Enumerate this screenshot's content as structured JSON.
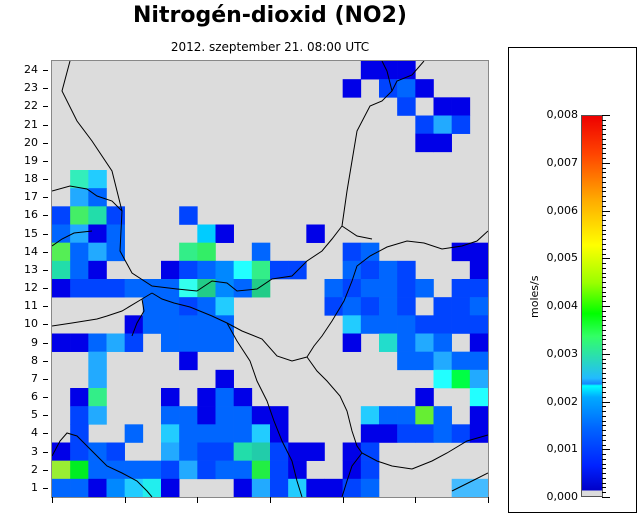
{
  "header": {
    "title": "Nitrogén-dioxid (NO2)",
    "subtitle": "2012. szeptember 21. 08:00 UTC"
  },
  "map": {
    "y_labels": [
      "24",
      "23",
      "22",
      "21",
      "20",
      "19",
      "18",
      "17",
      "16",
      "15",
      "14",
      "13",
      "12",
      "11",
      "10",
      "9",
      "8",
      "7",
      "6",
      "5",
      "4",
      "3",
      "2",
      "1"
    ],
    "grid_rows": 24,
    "grid_cols": 24,
    "cells": [
      {
        "row": 24,
        "col": 18,
        "color": "#0000e8"
      },
      {
        "row": 24,
        "col": 19,
        "color": "#0000e8"
      },
      {
        "row": 24,
        "col": 20,
        "color": "#0000e8"
      },
      {
        "row": 23,
        "col": 17,
        "color": "#0000e8"
      },
      {
        "row": 23,
        "col": 19,
        "color": "#0044ff"
      },
      {
        "row": 23,
        "col": 20,
        "color": "#0066ff"
      },
      {
        "row": 23,
        "col": 21,
        "color": "#0000e8"
      },
      {
        "row": 22,
        "col": 20,
        "color": "#0044ff"
      },
      {
        "row": 22,
        "col": 22,
        "color": "#0000e8"
      },
      {
        "row": 22,
        "col": 23,
        "color": "#0000e8"
      },
      {
        "row": 21,
        "col": 21,
        "color": "#0044ff"
      },
      {
        "row": 21,
        "col": 22,
        "color": "#22aaff"
      },
      {
        "row": 21,
        "col": 23,
        "color": "#0044ff"
      },
      {
        "row": 20,
        "col": 21,
        "color": "#0000e8"
      },
      {
        "row": 20,
        "col": 22,
        "color": "#0000e8"
      },
      {
        "row": 18,
        "col": 2,
        "color": "#33eebb"
      },
      {
        "row": 18,
        "col": 3,
        "color": "#22ccff"
      },
      {
        "row": 17,
        "col": 2,
        "color": "#22aaff"
      },
      {
        "row": 17,
        "col": 3,
        "color": "#0066ff"
      },
      {
        "row": 16,
        "col": 1,
        "color": "#0044ff"
      },
      {
        "row": 16,
        "col": 2,
        "color": "#44ee66"
      },
      {
        "row": 16,
        "col": 3,
        "color": "#22ddaa"
      },
      {
        "row": 16,
        "col": 4,
        "color": "#0044ff"
      },
      {
        "row": 16,
        "col": 8,
        "color": "#0044ff"
      },
      {
        "row": 15,
        "col": 1,
        "color": "#0066ff"
      },
      {
        "row": 15,
        "col": 2,
        "color": "#22aaff"
      },
      {
        "row": 15,
        "col": 3,
        "color": "#0000e8"
      },
      {
        "row": 15,
        "col": 4,
        "color": "#0066ff"
      },
      {
        "row": 15,
        "col": 9,
        "color": "#00ccff"
      },
      {
        "row": 15,
        "col": 10,
        "color": "#0000e8"
      },
      {
        "row": 15,
        "col": 15,
        "color": "#0000e8"
      },
      {
        "row": 14,
        "col": 1,
        "color": "#55ee55"
      },
      {
        "row": 14,
        "col": 2,
        "color": "#0066ff"
      },
      {
        "row": 14,
        "col": 3,
        "color": "#22aaff"
      },
      {
        "row": 14,
        "col": 4,
        "color": "#0066ff"
      },
      {
        "row": 14,
        "col": 8,
        "color": "#33ee88"
      },
      {
        "row": 14,
        "col": 9,
        "color": "#33ee66"
      },
      {
        "row": 14,
        "col": 12,
        "color": "#0066ff"
      },
      {
        "row": 14,
        "col": 17,
        "color": "#0044ff"
      },
      {
        "row": 14,
        "col": 18,
        "color": "#0066ff"
      },
      {
        "row": 14,
        "col": 23,
        "color": "#0000e8"
      },
      {
        "row": 14,
        "col": 24,
        "color": "#0000e8"
      },
      {
        "row": 13,
        "col": 1,
        "color": "#22ddaa"
      },
      {
        "row": 13,
        "col": 2,
        "color": "#0066ff"
      },
      {
        "row": 13,
        "col": 3,
        "color": "#0000e8"
      },
      {
        "row": 13,
        "col": 7,
        "color": "#0000e8"
      },
      {
        "row": 13,
        "col": 8,
        "color": "#0044ff"
      },
      {
        "row": 13,
        "col": 9,
        "color": "#0066ff"
      },
      {
        "row": 13,
        "col": 10,
        "color": "#0088ff"
      },
      {
        "row": 13,
        "col": 11,
        "color": "#22ffff"
      },
      {
        "row": 13,
        "col": 12,
        "color": "#33ee88"
      },
      {
        "row": 13,
        "col": 13,
        "color": "#0044ff"
      },
      {
        "row": 13,
        "col": 14,
        "color": "#0044ff"
      },
      {
        "row": 13,
        "col": 17,
        "color": "#0066ff"
      },
      {
        "row": 13,
        "col": 18,
        "color": "#0044ff"
      },
      {
        "row": 13,
        "col": 19,
        "color": "#0066ff"
      },
      {
        "row": 13,
        "col": 20,
        "color": "#0044ff"
      },
      {
        "row": 13,
        "col": 24,
        "color": "#0000e8"
      },
      {
        "row": 12,
        "col": 1,
        "color": "#0000e8"
      },
      {
        "row": 12,
        "col": 2,
        "color": "#0044ff"
      },
      {
        "row": 12,
        "col": 3,
        "color": "#0044ff"
      },
      {
        "row": 12,
        "col": 4,
        "color": "#0044ff"
      },
      {
        "row": 12,
        "col": 5,
        "color": "#0066ff"
      },
      {
        "row": 12,
        "col": 6,
        "color": "#0066ff"
      },
      {
        "row": 12,
        "col": 7,
        "color": "#0066ff"
      },
      {
        "row": 12,
        "col": 8,
        "color": "#33ffee"
      },
      {
        "row": 12,
        "col": 9,
        "color": "#22cc88"
      },
      {
        "row": 12,
        "col": 10,
        "color": "#0088ff"
      },
      {
        "row": 12,
        "col": 11,
        "color": "#0066ff"
      },
      {
        "row": 12,
        "col": 12,
        "color": "#22cc88"
      },
      {
        "row": 12,
        "col": 16,
        "color": "#0066ff"
      },
      {
        "row": 12,
        "col": 17,
        "color": "#0044ff"
      },
      {
        "row": 12,
        "col": 18,
        "color": "#0066ff"
      },
      {
        "row": 12,
        "col": 19,
        "color": "#0066ff"
      },
      {
        "row": 12,
        "col": 20,
        "color": "#0044ff"
      },
      {
        "row": 12,
        "col": 21,
        "color": "#0066ff"
      },
      {
        "row": 12,
        "col": 23,
        "color": "#0044ff"
      },
      {
        "row": 12,
        "col": 24,
        "color": "#0044ff"
      },
      {
        "row": 11,
        "col": 6,
        "color": "#0066ff"
      },
      {
        "row": 11,
        "col": 7,
        "color": "#0066ff"
      },
      {
        "row": 11,
        "col": 8,
        "color": "#0044ff"
      },
      {
        "row": 11,
        "col": 9,
        "color": "#0066ff"
      },
      {
        "row": 11,
        "col": 10,
        "color": "#22ccff"
      },
      {
        "row": 11,
        "col": 16,
        "color": "#0044ff"
      },
      {
        "row": 11,
        "col": 17,
        "color": "#0066ff"
      },
      {
        "row": 11,
        "col": 18,
        "color": "#0044ff"
      },
      {
        "row": 11,
        "col": 19,
        "color": "#0066ff"
      },
      {
        "row": 11,
        "col": 20,
        "color": "#0044ff"
      },
      {
        "row": 11,
        "col": 22,
        "color": "#0044ff"
      },
      {
        "row": 11,
        "col": 23,
        "color": "#0044ff"
      },
      {
        "row": 11,
        "col": 24,
        "color": "#0066ff"
      },
      {
        "row": 10,
        "col": 5,
        "color": "#0000e8"
      },
      {
        "row": 10,
        "col": 6,
        "color": "#0066ff"
      },
      {
        "row": 10,
        "col": 7,
        "color": "#0066ff"
      },
      {
        "row": 10,
        "col": 8,
        "color": "#0066ff"
      },
      {
        "row": 10,
        "col": 9,
        "color": "#0066ff"
      },
      {
        "row": 10,
        "col": 10,
        "color": "#0066ff"
      },
      {
        "row": 10,
        "col": 17,
        "color": "#22ccff"
      },
      {
        "row": 10,
        "col": 18,
        "color": "#0066ff"
      },
      {
        "row": 10,
        "col": 19,
        "color": "#0066ff"
      },
      {
        "row": 10,
        "col": 20,
        "color": "#0066ff"
      },
      {
        "row": 10,
        "col": 21,
        "color": "#0044ff"
      },
      {
        "row": 10,
        "col": 22,
        "color": "#0044ff"
      },
      {
        "row": 10,
        "col": 23,
        "color": "#0044ff"
      },
      {
        "row": 10,
        "col": 24,
        "color": "#0044ff"
      },
      {
        "row": 9,
        "col": 1,
        "color": "#0000e8"
      },
      {
        "row": 9,
        "col": 2,
        "color": "#0000e8"
      },
      {
        "row": 9,
        "col": 3,
        "color": "#0066ff"
      },
      {
        "row": 9,
        "col": 4,
        "color": "#22aaff"
      },
      {
        "row": 9,
        "col": 5,
        "color": "#0044ff"
      },
      {
        "row": 9,
        "col": 7,
        "color": "#0066ff"
      },
      {
        "row": 9,
        "col": 8,
        "color": "#0066ff"
      },
      {
        "row": 9,
        "col": 9,
        "color": "#0066ff"
      },
      {
        "row": 9,
        "col": 10,
        "color": "#0066ff"
      },
      {
        "row": 9,
        "col": 17,
        "color": "#0000e8"
      },
      {
        "row": 9,
        "col": 19,
        "color": "#22ddcc"
      },
      {
        "row": 9,
        "col": 20,
        "color": "#0066ff"
      },
      {
        "row": 9,
        "col": 21,
        "color": "#22aaff"
      },
      {
        "row": 9,
        "col": 22,
        "color": "#0066ff"
      },
      {
        "row": 9,
        "col": 24,
        "color": "#0000e8"
      },
      {
        "row": 8,
        "col": 3,
        "color": "#22aaff"
      },
      {
        "row": 8,
        "col": 8,
        "color": "#0000e8"
      },
      {
        "row": 8,
        "col": 20,
        "color": "#0066ff"
      },
      {
        "row": 8,
        "col": 21,
        "color": "#0066ff"
      },
      {
        "row": 8,
        "col": 22,
        "color": "#22aaff"
      },
      {
        "row": 8,
        "col": 23,
        "color": "#0066ff"
      },
      {
        "row": 8,
        "col": 24,
        "color": "#0066ff"
      },
      {
        "row": 7,
        "col": 3,
        "color": "#22aaff"
      },
      {
        "row": 7,
        "col": 10,
        "color": "#0000e8"
      },
      {
        "row": 7,
        "col": 22,
        "color": "#22ffff"
      },
      {
        "row": 7,
        "col": 23,
        "color": "#00ff44"
      },
      {
        "row": 7,
        "col": 24,
        "color": "#22aaff"
      },
      {
        "row": 6,
        "col": 2,
        "color": "#0000e8"
      },
      {
        "row": 6,
        "col": 3,
        "color": "#33ee88"
      },
      {
        "row": 6,
        "col": 7,
        "color": "#0000e8"
      },
      {
        "row": 6,
        "col": 9,
        "color": "#0000e8"
      },
      {
        "row": 6,
        "col": 10,
        "color": "#0066ff"
      },
      {
        "row": 6,
        "col": 11,
        "color": "#0000e8"
      },
      {
        "row": 6,
        "col": 21,
        "color": "#0000e8"
      },
      {
        "row": 6,
        "col": 24,
        "color": "#22ffff"
      },
      {
        "row": 5,
        "col": 2,
        "color": "#0044ff"
      },
      {
        "row": 5,
        "col": 3,
        "color": "#22aaff"
      },
      {
        "row": 5,
        "col": 7,
        "color": "#0066ff"
      },
      {
        "row": 5,
        "col": 8,
        "color": "#0066ff"
      },
      {
        "row": 5,
        "col": 9,
        "color": "#0000e8"
      },
      {
        "row": 5,
        "col": 10,
        "color": "#0066ff"
      },
      {
        "row": 5,
        "col": 11,
        "color": "#0066ff"
      },
      {
        "row": 5,
        "col": 12,
        "color": "#0000e8"
      },
      {
        "row": 5,
        "col": 13,
        "color": "#0000e8"
      },
      {
        "row": 5,
        "col": 18,
        "color": "#22ccff"
      },
      {
        "row": 5,
        "col": 19,
        "color": "#0066ff"
      },
      {
        "row": 5,
        "col": 20,
        "color": "#0066ff"
      },
      {
        "row": 5,
        "col": 21,
        "color": "#66ee33"
      },
      {
        "row": 5,
        "col": 22,
        "color": "#0066ff"
      },
      {
        "row": 5,
        "col": 24,
        "color": "#0000e8"
      },
      {
        "row": 4,
        "col": 2,
        "color": "#0044ff"
      },
      {
        "row": 4,
        "col": 5,
        "color": "#0066ff"
      },
      {
        "row": 4,
        "col": 7,
        "color": "#22ccff"
      },
      {
        "row": 4,
        "col": 8,
        "color": "#0066ff"
      },
      {
        "row": 4,
        "col": 9,
        "color": "#0066ff"
      },
      {
        "row": 4,
        "col": 10,
        "color": "#0066ff"
      },
      {
        "row": 4,
        "col": 11,
        "color": "#0066ff"
      },
      {
        "row": 4,
        "col": 12,
        "color": "#22ccff"
      },
      {
        "row": 4,
        "col": 13,
        "color": "#0000e8"
      },
      {
        "row": 4,
        "col": 18,
        "color": "#0000e8"
      },
      {
        "row": 4,
        "col": 19,
        "color": "#0000e8"
      },
      {
        "row": 4,
        "col": 20,
        "color": "#0044ff"
      },
      {
        "row": 4,
        "col": 21,
        "color": "#0044ff"
      },
      {
        "row": 4,
        "col": 22,
        "color": "#0066ff"
      },
      {
        "row": 4,
        "col": 23,
        "color": "#0044ff"
      },
      {
        "row": 4,
        "col": 24,
        "color": "#0000e8"
      },
      {
        "row": 3,
        "col": 1,
        "color": "#0000e8"
      },
      {
        "row": 3,
        "col": 2,
        "color": "#0044ff"
      },
      {
        "row": 3,
        "col": 3,
        "color": "#0066ff"
      },
      {
        "row": 3,
        "col": 4,
        "color": "#0044ff"
      },
      {
        "row": 3,
        "col": 7,
        "color": "#22aaff"
      },
      {
        "row": 3,
        "col": 8,
        "color": "#0066ff"
      },
      {
        "row": 3,
        "col": 9,
        "color": "#0044ff"
      },
      {
        "row": 3,
        "col": 10,
        "color": "#0044ff"
      },
      {
        "row": 3,
        "col": 11,
        "color": "#22ddaa"
      },
      {
        "row": 3,
        "col": 12,
        "color": "#22ccaa"
      },
      {
        "row": 3,
        "col": 13,
        "color": "#0044ff"
      },
      {
        "row": 3,
        "col": 14,
        "color": "#0000e8"
      },
      {
        "row": 3,
        "col": 15,
        "color": "#0000e8"
      },
      {
        "row": 3,
        "col": 17,
        "color": "#0000e8"
      },
      {
        "row": 3,
        "col": 18,
        "color": "#0044ff"
      },
      {
        "row": 2,
        "col": 1,
        "color": "#99ee33"
      },
      {
        "row": 2,
        "col": 2,
        "color": "#00ee22"
      },
      {
        "row": 2,
        "col": 3,
        "color": "#0066ff"
      },
      {
        "row": 2,
        "col": 4,
        "color": "#0066ff"
      },
      {
        "row": 2,
        "col": 5,
        "color": "#0066ff"
      },
      {
        "row": 2,
        "col": 6,
        "color": "#0066ff"
      },
      {
        "row": 2,
        "col": 7,
        "color": "#0044ff"
      },
      {
        "row": 2,
        "col": 8,
        "color": "#22aaff"
      },
      {
        "row": 2,
        "col": 9,
        "color": "#0044ff"
      },
      {
        "row": 2,
        "col": 10,
        "color": "#0066ff"
      },
      {
        "row": 2,
        "col": 11,
        "color": "#0066ff"
      },
      {
        "row": 2,
        "col": 12,
        "color": "#22ee44"
      },
      {
        "row": 2,
        "col": 13,
        "color": "#0044ff"
      },
      {
        "row": 2,
        "col": 14,
        "color": "#0000e8"
      },
      {
        "row": 2,
        "col": 17,
        "color": "#0000e8"
      },
      {
        "row": 2,
        "col": 18,
        "color": "#0044ff"
      },
      {
        "row": 1,
        "col": 1,
        "color": "#0066ff"
      },
      {
        "row": 1,
        "col": 2,
        "color": "#0066ff"
      },
      {
        "row": 1,
        "col": 3,
        "color": "#0000e8"
      },
      {
        "row": 1,
        "col": 4,
        "color": "#0088ff"
      },
      {
        "row": 1,
        "col": 5,
        "color": "#22ccff"
      },
      {
        "row": 1,
        "col": 6,
        "color": "#22eeee"
      },
      {
        "row": 1,
        "col": 7,
        "color": "#0000e8"
      },
      {
        "row": 1,
        "col": 11,
        "color": "#0000e8"
      },
      {
        "row": 1,
        "col": 12,
        "color": "#22aaff"
      },
      {
        "row": 1,
        "col": 13,
        "color": "#0044ff"
      },
      {
        "row": 1,
        "col": 14,
        "color": "#22ccff"
      },
      {
        "row": 1,
        "col": 15,
        "color": "#0000e8"
      },
      {
        "row": 1,
        "col": 16,
        "color": "#0000e8"
      },
      {
        "row": 1,
        "col": 17,
        "color": "#0044ff"
      },
      {
        "row": 1,
        "col": 18,
        "color": "#0066ff"
      },
      {
        "row": 1,
        "col": 23,
        "color": "#44bbff"
      },
      {
        "row": 1,
        "col": 24,
        "color": "#44bbff"
      }
    ]
  },
  "legend": {
    "unit": "moles/s",
    "min": 0.0,
    "max": 0.008,
    "labels": [
      "0,008",
      "0,007",
      "0,006",
      "0,005",
      "0,004",
      "0,003",
      "0,002",
      "0,001",
      "0,000"
    ]
  }
}
